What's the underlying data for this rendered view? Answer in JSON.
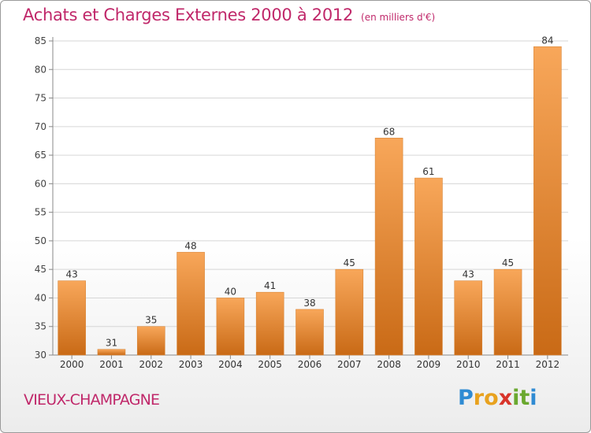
{
  "chart_data": {
    "type": "bar",
    "title": "Achats et Charges Externes 2000 à 2012",
    "subtitle": "(en milliers d'€)",
    "categories": [
      "2000",
      "2001",
      "2002",
      "2003",
      "2004",
      "2005",
      "2006",
      "2007",
      "2008",
      "2009",
      "2010",
      "2011",
      "2012"
    ],
    "values": [
      43,
      31,
      35,
      48,
      40,
      41,
      38,
      45,
      68,
      61,
      43,
      45,
      84
    ],
    "ylim": [
      30,
      85
    ],
    "yticks": [
      30,
      35,
      40,
      45,
      50,
      55,
      60,
      65,
      70,
      75,
      80,
      85
    ],
    "grid": true,
    "bar_color_light": "#f8a75a",
    "bar_color_dark": "#c96a16"
  },
  "footer": {
    "commune": "VIEUX-CHAMPAGNE",
    "logo_letters": [
      "P",
      "r",
      "o",
      "x",
      "i",
      "t",
      "i"
    ],
    "logo_colors": [
      "#2f8bd3",
      "#e8a21f",
      "#e8a21f",
      "#d8342a",
      "#6aa82f",
      "#6aa82f",
      "#2f8bd3"
    ]
  }
}
